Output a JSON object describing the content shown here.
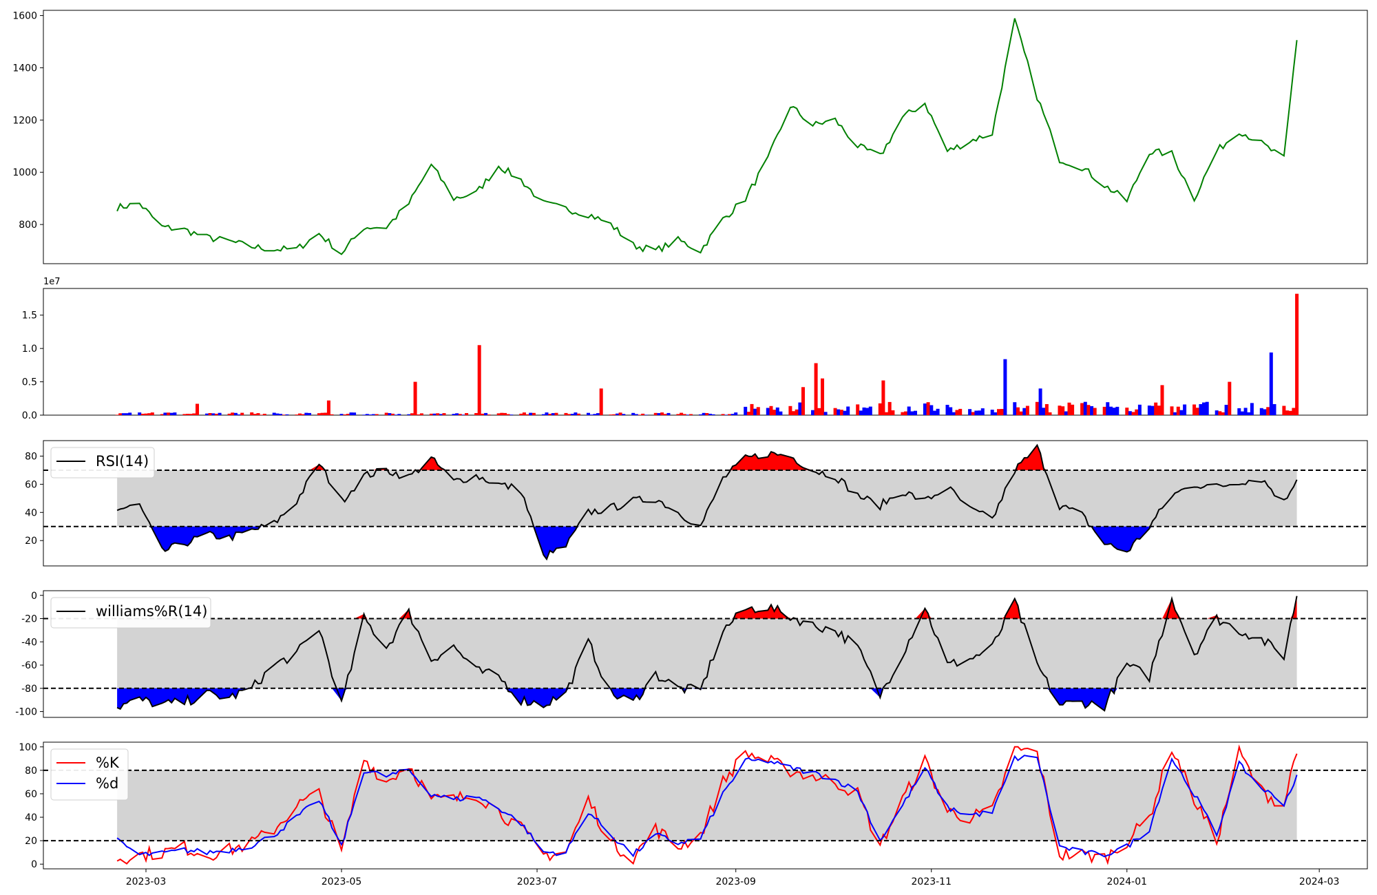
{
  "colors": {
    "price": "#008000",
    "up": "#ff0000",
    "down": "#0000ff",
    "neutral": "#000000",
    "band": "#d3d3d3",
    "k": "#ff0000",
    "d": "#0000ff"
  },
  "chart_data": [
    {
      "type": "line",
      "ylim": [
        650,
        1620
      ],
      "yticks": [
        "800",
        "1000",
        "1200",
        "1400",
        "1600"
      ],
      "series": [
        {
          "x": [
            "2023-02-20",
            "2023-02-27",
            "2023-03-06",
            "2023-03-13",
            "2023-03-20",
            "2023-03-27",
            "2023-04-03",
            "2023-04-10",
            "2023-04-17",
            "2023-04-24",
            "2023-05-01",
            "2023-05-08",
            "2023-05-15",
            "2023-05-22",
            "2023-05-29",
            "2023-06-05",
            "2023-06-12",
            "2023-06-19",
            "2023-06-26",
            "2023-07-03",
            "2023-07-10",
            "2023-07-17",
            "2023-07-24",
            "2023-07-31",
            "2023-08-07",
            "2023-08-14",
            "2023-08-21",
            "2023-08-28",
            "2023-09-04",
            "2023-09-11",
            "2023-09-18",
            "2023-09-25",
            "2023-10-02",
            "2023-10-09",
            "2023-10-16",
            "2023-10-23",
            "2023-10-30",
            "2023-11-06",
            "2023-11-13",
            "2023-11-20",
            "2023-11-27",
            "2023-12-04",
            "2023-12-11",
            "2023-12-18",
            "2023-12-25",
            "2024-01-01",
            "2024-01-08",
            "2024-01-15",
            "2024-01-22",
            "2024-01-29",
            "2024-02-05",
            "2024-02-12",
            "2024-02-19",
            "2024-02-23"
          ],
          "values": [
            865,
            880,
            790,
            780,
            750,
            735,
            715,
            705,
            705,
            765,
            690,
            790,
            790,
            880,
            1030,
            900,
            920,
            1025,
            970,
            880,
            860,
            840,
            800,
            720,
            700,
            740,
            700,
            820,
            900,
            1050,
            1255,
            1180,
            1200,
            1100,
            1060,
            1210,
            1265,
            1080,
            1120,
            1150,
            1580,
            1290,
            1050,
            1020,
            950,
            890,
            1080,
            1070,
            900,
            1080,
            1160,
            1110,
            1050,
            1510
          ]
        }
      ]
    },
    {
      "type": "bar",
      "multiplier_label": "1e7",
      "ylim": [
        0,
        19000000
      ],
      "yticks": [
        "0.0",
        "0.5",
        "1.0",
        "1.5"
      ],
      "spikes": [
        {
          "x": "2023-03-17",
          "value": 1700000,
          "color": "up"
        },
        {
          "x": "2023-04-27",
          "value": 2200000,
          "color": "up"
        },
        {
          "x": "2023-05-24",
          "value": 5000000,
          "color": "up"
        },
        {
          "x": "2023-06-13",
          "value": 10500000,
          "color": "up"
        },
        {
          "x": "2023-07-21",
          "value": 4000000,
          "color": "up"
        },
        {
          "x": "2023-09-22",
          "value": 4200000,
          "color": "up"
        },
        {
          "x": "2023-09-26",
          "value": 7800000,
          "color": "up"
        },
        {
          "x": "2023-09-28",
          "value": 5500000,
          "color": "up"
        },
        {
          "x": "2023-10-17",
          "value": 5200000,
          "color": "up"
        },
        {
          "x": "2023-11-24",
          "value": 8400000,
          "color": "down"
        },
        {
          "x": "2023-12-05",
          "value": 4000000,
          "color": "down"
        },
        {
          "x": "2024-01-12",
          "value": 4500000,
          "color": "up"
        },
        {
          "x": "2024-02-02",
          "value": 5000000,
          "color": "up"
        },
        {
          "x": "2024-02-15",
          "value": 9400000,
          "color": "down"
        },
        {
          "x": "2024-02-23",
          "value": 18200000,
          "color": "up"
        }
      ]
    },
    {
      "type": "line",
      "legend": [
        "RSI(14)"
      ],
      "ylim": [
        2,
        91
      ],
      "yticks": [
        "20",
        "40",
        "60",
        "80"
      ],
      "thresholds": [
        30,
        70
      ],
      "series": [
        {
          "name": "RSI(14)",
          "x": [
            "2023-02-20",
            "2023-02-27",
            "2023-03-06",
            "2023-03-13",
            "2023-03-20",
            "2023-03-27",
            "2023-04-03",
            "2023-04-10",
            "2023-04-17",
            "2023-04-24",
            "2023-05-01",
            "2023-05-08",
            "2023-05-15",
            "2023-05-22",
            "2023-05-29",
            "2023-06-05",
            "2023-06-12",
            "2023-06-19",
            "2023-06-26",
            "2023-07-03",
            "2023-07-10",
            "2023-07-17",
            "2023-07-24",
            "2023-07-31",
            "2023-08-07",
            "2023-08-14",
            "2023-08-21",
            "2023-08-28",
            "2023-09-04",
            "2023-09-11",
            "2023-09-18",
            "2023-09-25",
            "2023-10-02",
            "2023-10-09",
            "2023-10-16",
            "2023-10-23",
            "2023-10-30",
            "2023-11-06",
            "2023-11-13",
            "2023-11-20",
            "2023-11-27",
            "2023-12-04",
            "2023-12-11",
            "2023-12-18",
            "2023-12-25",
            "2024-01-01",
            "2024-01-08",
            "2024-01-15",
            "2024-01-22",
            "2024-01-29",
            "2024-02-05",
            "2024-02-12",
            "2024-02-19",
            "2024-02-23"
          ],
          "values": [
            42,
            45,
            12,
            18,
            24,
            22,
            27,
            32,
            48,
            75,
            48,
            66,
            70,
            65,
            78,
            62,
            66,
            60,
            56,
            8,
            16,
            40,
            43,
            48,
            50,
            40,
            30,
            64,
            78,
            82,
            80,
            70,
            66,
            52,
            45,
            55,
            48,
            58,
            42,
            35,
            70,
            86,
            45,
            38,
            18,
            12,
            30,
            52,
            60,
            58,
            62,
            64,
            47,
            65
          ]
        }
      ]
    },
    {
      "type": "line",
      "legend": [
        "williams%R(14)"
      ],
      "ylim": [
        -105,
        4
      ],
      "yticks": [
        "0",
        "-20",
        "-40",
        "-60",
        "-80",
        "-100"
      ],
      "thresholds": [
        -20,
        -80
      ],
      "series": [
        {
          "name": "williams%R(14)",
          "x": [
            "2023-02-20",
            "2023-02-27",
            "2023-03-06",
            "2023-03-13",
            "2023-03-20",
            "2023-03-27",
            "2023-04-03",
            "2023-04-10",
            "2023-04-17",
            "2023-04-24",
            "2023-05-01",
            "2023-05-08",
            "2023-05-15",
            "2023-05-22",
            "2023-05-29",
            "2023-06-05",
            "2023-06-12",
            "2023-06-19",
            "2023-06-26",
            "2023-07-03",
            "2023-07-10",
            "2023-07-17",
            "2023-07-24",
            "2023-07-31",
            "2023-08-07",
            "2023-08-14",
            "2023-08-21",
            "2023-08-28",
            "2023-09-04",
            "2023-09-11",
            "2023-09-18",
            "2023-09-25",
            "2023-10-02",
            "2023-10-09",
            "2023-10-16",
            "2023-10-23",
            "2023-10-30",
            "2023-11-06",
            "2023-11-13",
            "2023-11-20",
            "2023-11-27",
            "2023-12-04",
            "2023-12-11",
            "2023-12-18",
            "2023-12-25",
            "2024-01-01",
            "2024-01-08",
            "2024-01-15",
            "2024-01-22",
            "2024-01-29",
            "2024-02-05",
            "2024-02-12",
            "2024-02-19",
            "2024-02-23"
          ],
          "values": [
            -96,
            -90,
            -94,
            -92,
            -85,
            -88,
            -80,
            -60,
            -50,
            -28,
            -94,
            -20,
            -45,
            -15,
            -55,
            -44,
            -65,
            -70,
            -90,
            -94,
            -84,
            -40,
            -85,
            -92,
            -68,
            -80,
            -82,
            -30,
            -12,
            -10,
            -18,
            -26,
            -30,
            -45,
            -86,
            -50,
            -10,
            -60,
            -55,
            -45,
            -5,
            -60,
            -94,
            -92,
            -95,
            -60,
            -70,
            -2,
            -50,
            -20,
            -30,
            -38,
            -52,
            0
          ]
        }
      ]
    },
    {
      "type": "line",
      "legend": [
        "%K",
        "%d"
      ],
      "ylim": [
        -4,
        104
      ],
      "yticks": [
        "0",
        "20",
        "40",
        "60",
        "80",
        "100"
      ],
      "thresholds": [
        20,
        80
      ],
      "series": [
        {
          "name": "%K",
          "x": [
            "2023-02-20",
            "2023-02-27",
            "2023-03-06",
            "2023-03-13",
            "2023-03-20",
            "2023-03-27",
            "2023-04-03",
            "2023-04-10",
            "2023-04-17",
            "2023-04-24",
            "2023-05-01",
            "2023-05-08",
            "2023-05-15",
            "2023-05-22",
            "2023-05-29",
            "2023-06-05",
            "2023-06-12",
            "2023-06-19",
            "2023-06-26",
            "2023-07-03",
            "2023-07-10",
            "2023-07-17",
            "2023-07-24",
            "2023-07-31",
            "2023-08-07",
            "2023-08-14",
            "2023-08-21",
            "2023-08-28",
            "2023-09-04",
            "2023-09-11",
            "2023-09-18",
            "2023-09-25",
            "2023-10-02",
            "2023-10-09",
            "2023-10-16",
            "2023-10-23",
            "2023-10-30",
            "2023-11-06",
            "2023-11-13",
            "2023-11-20",
            "2023-11-27",
            "2023-12-04",
            "2023-12-11",
            "2023-12-18",
            "2023-12-25",
            "2024-01-01",
            "2024-01-08",
            "2024-01-15",
            "2024-01-22",
            "2024-01-29",
            "2024-02-05",
            "2024-02-12",
            "2024-02-19",
            "2024-02-23"
          ],
          "values": [
            5,
            8,
            10,
            14,
            8,
            12,
            18,
            30,
            50,
            60,
            10,
            90,
            70,
            85,
            55,
            55,
            60,
            45,
            30,
            8,
            10,
            55,
            18,
            6,
            30,
            15,
            25,
            70,
            95,
            88,
            80,
            75,
            70,
            60,
            15,
            55,
            88,
            45,
            40,
            45,
            98,
            95,
            8,
            8,
            5,
            20,
            40,
            100,
            55,
            20,
            95,
            62,
            50,
            100
          ]
        },
        {
          "name": "%d",
          "x": [
            "2023-02-20",
            "2023-02-27",
            "2023-03-06",
            "2023-03-13",
            "2023-03-20",
            "2023-03-27",
            "2023-04-03",
            "2023-04-10",
            "2023-04-17",
            "2023-04-24",
            "2023-05-01",
            "2023-05-08",
            "2023-05-15",
            "2023-05-22",
            "2023-05-29",
            "2023-06-05",
            "2023-06-12",
            "2023-06-19",
            "2023-06-26",
            "2023-07-03",
            "2023-07-10",
            "2023-07-17",
            "2023-07-24",
            "2023-07-31",
            "2023-08-07",
            "2023-08-14",
            "2023-08-21",
            "2023-08-28",
            "2023-09-04",
            "2023-09-11",
            "2023-09-18",
            "2023-09-25",
            "2023-10-02",
            "2023-10-09",
            "2023-10-16",
            "2023-10-23",
            "2023-10-30",
            "2023-11-06",
            "2023-11-13",
            "2023-11-20",
            "2023-11-27",
            "2023-12-04",
            "2023-12-11",
            "2023-12-18",
            "2023-12-25",
            "2024-01-01",
            "2024-01-08",
            "2024-01-15",
            "2024-01-22",
            "2024-01-29",
            "2024-02-05",
            "2024-02-12",
            "2024-02-19",
            "2024-02-23"
          ],
          "values": [
            20,
            8,
            9,
            12,
            10,
            12,
            16,
            25,
            40,
            55,
            15,
            80,
            75,
            80,
            60,
            55,
            58,
            48,
            35,
            10,
            10,
            45,
            25,
            8,
            25,
            18,
            22,
            60,
            88,
            88,
            82,
            78,
            72,
            62,
            20,
            50,
            82,
            48,
            42,
            44,
            90,
            92,
            15,
            10,
            8,
            15,
            30,
            90,
            60,
            25,
            85,
            65,
            52,
            74
          ]
        }
      ]
    }
  ],
  "x_axis": {
    "ticks": [
      {
        "label": "2023-03",
        "date": "2023-03-01"
      },
      {
        "label": "2023-05",
        "date": "2023-05-01"
      },
      {
        "label": "2023-07",
        "date": "2023-07-01"
      },
      {
        "label": "2023-09",
        "date": "2023-09-01"
      },
      {
        "label": "2023-11",
        "date": "2023-11-01"
      },
      {
        "label": "2024-01",
        "date": "2024-01-01"
      },
      {
        "label": "2024-03",
        "date": "2024-03-01"
      }
    ]
  }
}
